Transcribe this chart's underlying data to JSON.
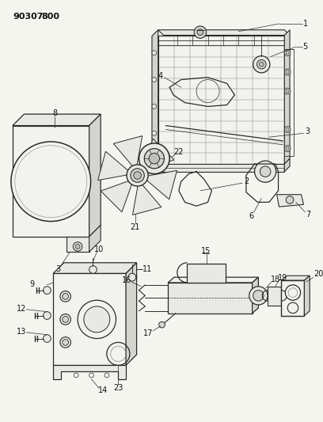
{
  "title": "90307 800",
  "bg_color": "#f5f5f0",
  "line_color": "#2a2a2a",
  "lw": 0.7,
  "fig_width": 4.08,
  "fig_height": 5.33,
  "dpi": 100
}
